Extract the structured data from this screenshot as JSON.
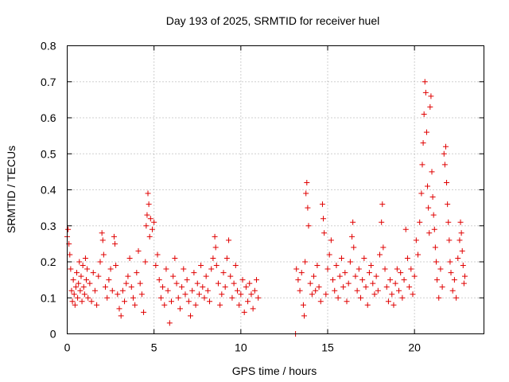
{
  "chart_data": {
    "type": "scatter",
    "title": "Day 193 of 2025, SRMTID for receiver huel",
    "xlabel": "GPS time / hours",
    "ylabel": "SRMTID / TECUs",
    "xlim": [
      0,
      24
    ],
    "ylim": [
      0,
      0.8
    ],
    "xticks": [
      0,
      5,
      10,
      15,
      20
    ],
    "xtick_labels": [
      "0",
      "5",
      "10",
      "15",
      "20"
    ],
    "yticks": [
      0,
      0.1,
      0.2,
      0.3,
      0.4,
      0.5,
      0.6,
      0.7,
      0.8
    ],
    "ytick_labels": [
      "0",
      "0.1",
      "0.2",
      "0.3",
      "0.4",
      "0.5",
      "0.6",
      "0.7",
      "0.8"
    ],
    "grid": true,
    "marker": "plus",
    "color": "#e00000",
    "series": [
      {
        "name": "SRMTID",
        "points": [
          [
            0.0,
            0.27
          ],
          [
            0.05,
            0.29
          ],
          [
            0.1,
            0.25
          ],
          [
            0.15,
            0.22
          ],
          [
            0.2,
            0.18
          ],
          [
            0.25,
            0.12
          ],
          [
            0.3,
            0.09
          ],
          [
            0.35,
            0.15
          ],
          [
            0.4,
            0.11
          ],
          [
            0.45,
            0.08
          ],
          [
            0.5,
            0.13
          ],
          [
            0.55,
            0.17
          ],
          [
            0.6,
            0.1
          ],
          [
            0.65,
            0.14
          ],
          [
            0.7,
            0.2
          ],
          [
            0.75,
            0.12
          ],
          [
            0.8,
            0.16
          ],
          [
            0.85,
            0.09
          ],
          [
            0.9,
            0.19
          ],
          [
            0.95,
            0.13
          ],
          [
            1.0,
            0.11
          ],
          [
            1.05,
            0.21
          ],
          [
            1.1,
            0.15
          ],
          [
            1.15,
            0.18
          ],
          [
            1.2,
            0.1
          ],
          [
            1.3,
            0.14
          ],
          [
            1.4,
            0.09
          ],
          [
            1.5,
            0.17
          ],
          [
            1.6,
            0.12
          ],
          [
            1.7,
            0.08
          ],
          [
            1.8,
            0.16
          ],
          [
            1.9,
            0.2
          ],
          [
            2.0,
            0.28
          ],
          [
            2.05,
            0.26
          ],
          [
            2.1,
            0.22
          ],
          [
            2.2,
            0.13
          ],
          [
            2.3,
            0.1
          ],
          [
            2.4,
            0.15
          ],
          [
            2.5,
            0.18
          ],
          [
            2.6,
            0.12
          ],
          [
            2.7,
            0.27
          ],
          [
            2.75,
            0.25
          ],
          [
            2.8,
            0.19
          ],
          [
            2.9,
            0.11
          ],
          [
            3.0,
            0.07
          ],
          [
            3.1,
            0.05
          ],
          [
            3.2,
            0.12
          ],
          [
            3.3,
            0.09
          ],
          [
            3.4,
            0.14
          ],
          [
            3.5,
            0.16
          ],
          [
            3.6,
            0.21
          ],
          [
            3.7,
            0.13
          ],
          [
            3.8,
            0.1
          ],
          [
            3.9,
            0.08
          ],
          [
            4.0,
            0.17
          ],
          [
            4.1,
            0.23
          ],
          [
            4.2,
            0.14
          ],
          [
            4.3,
            0.11
          ],
          [
            4.4,
            0.06
          ],
          [
            4.5,
            0.2
          ],
          [
            4.55,
            0.3
          ],
          [
            4.6,
            0.33
          ],
          [
            4.65,
            0.39
          ],
          [
            4.7,
            0.36
          ],
          [
            4.75,
            0.27
          ],
          [
            4.8,
            0.32
          ],
          [
            4.9,
            0.29
          ],
          [
            5.0,
            0.31
          ],
          [
            5.1,
            0.19
          ],
          [
            5.2,
            0.22
          ],
          [
            5.3,
            0.15
          ],
          [
            5.4,
            0.1
          ],
          [
            5.5,
            0.13
          ],
          [
            5.6,
            0.08
          ],
          [
            5.7,
            0.18
          ],
          [
            5.8,
            0.12
          ],
          [
            5.9,
            0.03
          ],
          [
            6.0,
            0.09
          ],
          [
            6.1,
            0.16
          ],
          [
            6.2,
            0.21
          ],
          [
            6.3,
            0.14
          ],
          [
            6.4,
            0.1
          ],
          [
            6.5,
            0.07
          ],
          [
            6.6,
            0.13
          ],
          [
            6.7,
            0.18
          ],
          [
            6.8,
            0.11
          ],
          [
            6.9,
            0.15
          ],
          [
            7.0,
            0.09
          ],
          [
            7.1,
            0.05
          ],
          [
            7.2,
            0.12
          ],
          [
            7.3,
            0.17
          ],
          [
            7.4,
            0.08
          ],
          [
            7.5,
            0.14
          ],
          [
            7.6,
            0.11
          ],
          [
            7.7,
            0.19
          ],
          [
            7.8,
            0.13
          ],
          [
            7.9,
            0.1
          ],
          [
            8.0,
            0.16
          ],
          [
            8.1,
            0.12
          ],
          [
            8.2,
            0.09
          ],
          [
            8.3,
            0.18
          ],
          [
            8.4,
            0.21
          ],
          [
            8.5,
            0.27
          ],
          [
            8.55,
            0.24
          ],
          [
            8.6,
            0.19
          ],
          [
            8.7,
            0.14
          ],
          [
            8.8,
            0.08
          ],
          [
            8.9,
            0.11
          ],
          [
            9.0,
            0.17
          ],
          [
            9.1,
            0.13
          ],
          [
            9.2,
            0.21
          ],
          [
            9.3,
            0.26
          ],
          [
            9.4,
            0.16
          ],
          [
            9.5,
            0.1
          ],
          [
            9.6,
            0.14
          ],
          [
            9.7,
            0.19
          ],
          [
            9.8,
            0.12
          ],
          [
            9.9,
            0.08
          ],
          [
            10.0,
            0.11
          ],
          [
            10.1,
            0.15
          ],
          [
            10.2,
            0.06
          ],
          [
            10.3,
            0.13
          ],
          [
            10.4,
            0.09
          ],
          [
            10.5,
            0.14
          ],
          [
            10.6,
            0.11
          ],
          [
            10.7,
            0.07
          ],
          [
            10.8,
            0.12
          ],
          [
            10.9,
            0.15
          ],
          [
            11.0,
            0.1
          ],
          [
            13.15,
            0.0
          ],
          [
            13.2,
            0.18
          ],
          [
            13.3,
            0.15
          ],
          [
            13.4,
            0.12
          ],
          [
            13.5,
            0.17
          ],
          [
            13.6,
            0.08
          ],
          [
            13.65,
            0.05
          ],
          [
            13.7,
            0.2
          ],
          [
            13.75,
            0.39
          ],
          [
            13.8,
            0.42
          ],
          [
            13.85,
            0.35
          ],
          [
            13.9,
            0.3
          ],
          [
            14.0,
            0.14
          ],
          [
            14.1,
            0.11
          ],
          [
            14.2,
            0.16
          ],
          [
            14.3,
            0.12
          ],
          [
            14.4,
            0.19
          ],
          [
            14.5,
            0.13
          ],
          [
            14.6,
            0.09
          ],
          [
            14.7,
            0.36
          ],
          [
            14.75,
            0.32
          ],
          [
            14.8,
            0.28
          ],
          [
            14.9,
            0.11
          ],
          [
            15.0,
            0.18
          ],
          [
            15.1,
            0.22
          ],
          [
            15.2,
            0.26
          ],
          [
            15.3,
            0.15
          ],
          [
            15.4,
            0.12
          ],
          [
            15.5,
            0.19
          ],
          [
            15.6,
            0.1
          ],
          [
            15.7,
            0.16
          ],
          [
            15.8,
            0.21
          ],
          [
            15.9,
            0.13
          ],
          [
            16.0,
            0.17
          ],
          [
            16.1,
            0.09
          ],
          [
            16.2,
            0.14
          ],
          [
            16.3,
            0.2
          ],
          [
            16.4,
            0.27
          ],
          [
            16.45,
            0.31
          ],
          [
            16.5,
            0.24
          ],
          [
            16.6,
            0.16
          ],
          [
            16.7,
            0.12
          ],
          [
            16.8,
            0.18
          ],
          [
            16.9,
            0.1
          ],
          [
            17.0,
            0.15
          ],
          [
            17.1,
            0.21
          ],
          [
            17.2,
            0.13
          ],
          [
            17.3,
            0.08
          ],
          [
            17.4,
            0.17
          ],
          [
            17.5,
            0.19
          ],
          [
            17.6,
            0.14
          ],
          [
            17.7,
            0.11
          ],
          [
            17.8,
            0.16
          ],
          [
            17.9,
            0.12
          ],
          [
            18.0,
            0.22
          ],
          [
            18.1,
            0.31
          ],
          [
            18.15,
            0.36
          ],
          [
            18.2,
            0.24
          ],
          [
            18.3,
            0.18
          ],
          [
            18.4,
            0.13
          ],
          [
            18.5,
            0.09
          ],
          [
            18.6,
            0.15
          ],
          [
            18.7,
            0.11
          ],
          [
            18.8,
            0.08
          ],
          [
            18.9,
            0.14
          ],
          [
            19.0,
            0.18
          ],
          [
            19.1,
            0.12
          ],
          [
            19.2,
            0.17
          ],
          [
            19.3,
            0.1
          ],
          [
            19.4,
            0.15
          ],
          [
            19.5,
            0.29
          ],
          [
            19.6,
            0.21
          ],
          [
            19.7,
            0.13
          ],
          [
            19.8,
            0.18
          ],
          [
            19.9,
            0.11
          ],
          [
            20.0,
            0.16
          ],
          [
            20.1,
            0.26
          ],
          [
            20.2,
            0.22
          ],
          [
            20.3,
            0.31
          ],
          [
            20.4,
            0.39
          ],
          [
            20.45,
            0.47
          ],
          [
            20.5,
            0.53
          ],
          [
            20.55,
            0.61
          ],
          [
            20.6,
            0.7
          ],
          [
            20.65,
            0.67
          ],
          [
            20.7,
            0.56
          ],
          [
            20.75,
            0.41
          ],
          [
            20.8,
            0.35
          ],
          [
            20.85,
            0.28
          ],
          [
            20.9,
            0.63
          ],
          [
            20.95,
            0.66
          ],
          [
            21.0,
            0.45
          ],
          [
            21.05,
            0.38
          ],
          [
            21.1,
            0.33
          ],
          [
            21.15,
            0.29
          ],
          [
            21.2,
            0.24
          ],
          [
            21.25,
            0.2
          ],
          [
            21.3,
            0.15
          ],
          [
            21.4,
            0.1
          ],
          [
            21.5,
            0.18
          ],
          [
            21.6,
            0.13
          ],
          [
            21.7,
            0.5
          ],
          [
            21.75,
            0.47
          ],
          [
            21.8,
            0.52
          ],
          [
            21.85,
            0.42
          ],
          [
            21.9,
            0.36
          ],
          [
            21.95,
            0.31
          ],
          [
            22.0,
            0.26
          ],
          [
            22.05,
            0.2
          ],
          [
            22.1,
            0.17
          ],
          [
            22.2,
            0.12
          ],
          [
            22.3,
            0.15
          ],
          [
            22.4,
            0.1
          ],
          [
            22.5,
            0.21
          ],
          [
            22.6,
            0.26
          ],
          [
            22.65,
            0.31
          ],
          [
            22.7,
            0.28
          ],
          [
            22.75,
            0.23
          ],
          [
            22.8,
            0.19
          ],
          [
            22.85,
            0.14
          ],
          [
            22.9,
            0.16
          ]
        ]
      }
    ]
  }
}
